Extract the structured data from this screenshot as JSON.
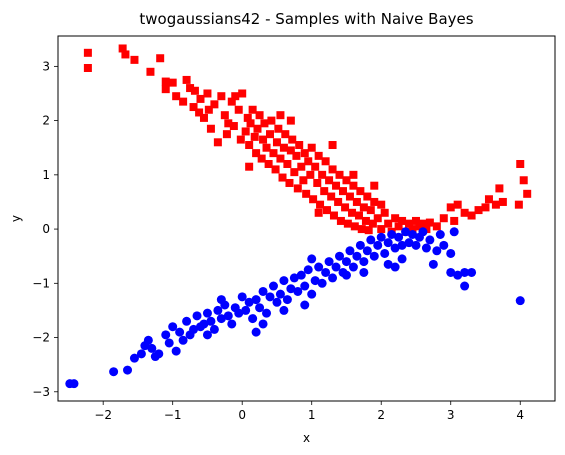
{
  "chart_data": {
    "type": "scatter",
    "title": "twogaussians42 - Samples with Naive Bayes",
    "xlabel": "x",
    "ylabel": "y",
    "xlim": [
      -2.65,
      4.5
    ],
    "ylim": [
      -3.17,
      3.56
    ],
    "xticks": [
      "−2",
      "−1",
      "0",
      "1",
      "2",
      "3",
      "4"
    ],
    "xtick_values": [
      -2,
      -1,
      0,
      1,
      2,
      3,
      4
    ],
    "yticks": [
      "−3",
      "−2",
      "−1",
      "0",
      "1",
      "2",
      "3"
    ],
    "ytick_values": [
      -3,
      -2,
      -1,
      0,
      1,
      2,
      3
    ],
    "grid": false,
    "series": [
      {
        "color": "#ff0000",
        "marker": "square",
        "points": [
          [
            -2.22,
            3.25
          ],
          [
            -2.22,
            2.97
          ],
          [
            -1.72,
            3.33
          ],
          [
            -1.68,
            3.22
          ],
          [
            -1.55,
            3.12
          ],
          [
            -1.32,
            2.9
          ],
          [
            -1.18,
            3.15
          ],
          [
            -1.1,
            2.72
          ],
          [
            -1.1,
            2.58
          ],
          [
            -1.0,
            2.7
          ],
          [
            -0.95,
            2.45
          ],
          [
            -0.85,
            2.35
          ],
          [
            -0.8,
            2.75
          ],
          [
            -0.75,
            2.6
          ],
          [
            -0.7,
            2.25
          ],
          [
            -0.68,
            2.55
          ],
          [
            -0.62,
            2.15
          ],
          [
            -0.6,
            2.4
          ],
          [
            -0.55,
            2.05
          ],
          [
            -0.5,
            2.5
          ],
          [
            -0.48,
            2.2
          ],
          [
            -0.45,
            1.85
          ],
          [
            -0.4,
            2.3
          ],
          [
            -0.35,
            1.6
          ],
          [
            -0.3,
            2.45
          ],
          [
            -0.25,
            2.1
          ],
          [
            -0.22,
            1.75
          ],
          [
            -0.2,
            1.95
          ],
          [
            -0.15,
            2.35
          ],
          [
            -0.12,
            1.9
          ],
          [
            -0.05,
            2.2
          ],
          [
            -0.02,
            1.65
          ],
          [
            0.0,
            2.5
          ],
          [
            0.05,
            1.8
          ],
          [
            0.08,
            2.05
          ],
          [
            0.1,
            1.55
          ],
          [
            0.12,
            1.95
          ],
          [
            0.15,
            2.2
          ],
          [
            0.18,
            1.7
          ],
          [
            0.2,
            1.4
          ],
          [
            0.22,
            1.85
          ],
          [
            0.25,
            2.1
          ],
          [
            0.28,
            1.3
          ],
          [
            0.3,
            1.65
          ],
          [
            0.32,
            1.95
          ],
          [
            0.35,
            1.5
          ],
          [
            0.38,
            1.2
          ],
          [
            0.4,
            1.75
          ],
          [
            0.42,
            2.0
          ],
          [
            0.45,
            1.4
          ],
          [
            0.48,
            1.1
          ],
          [
            0.5,
            1.6
          ],
          [
            0.52,
            1.85
          ],
          [
            0.55,
            1.3
          ],
          [
            0.58,
            0.95
          ],
          [
            0.6,
            1.5
          ],
          [
            0.62,
            1.75
          ],
          [
            0.65,
            1.2
          ],
          [
            0.68,
            0.85
          ],
          [
            0.7,
            1.45
          ],
          [
            0.72,
            1.65
          ],
          [
            0.75,
            1.05
          ],
          [
            0.78,
            1.35
          ],
          [
            0.8,
            0.75
          ],
          [
            0.82,
            1.55
          ],
          [
            0.85,
            1.15
          ],
          [
            0.88,
            0.9
          ],
          [
            0.9,
            1.4
          ],
          [
            0.92,
            0.65
          ],
          [
            0.95,
            1.25
          ],
          [
            0.98,
            1.0
          ],
          [
            1.0,
            1.5
          ],
          [
            1.02,
            0.55
          ],
          [
            1.05,
            1.15
          ],
          [
            1.08,
            0.85
          ],
          [
            1.1,
            1.35
          ],
          [
            1.12,
            0.45
          ],
          [
            1.15,
            1.0
          ],
          [
            1.18,
            0.7
          ],
          [
            1.2,
            1.25
          ],
          [
            1.22,
            0.35
          ],
          [
            1.25,
            0.9
          ],
          [
            1.28,
            0.6
          ],
          [
            1.3,
            1.1
          ],
          [
            1.32,
            0.25
          ],
          [
            1.35,
            0.8
          ],
          [
            1.38,
            0.5
          ],
          [
            1.4,
            1.0
          ],
          [
            1.42,
            0.15
          ],
          [
            1.45,
            0.7
          ],
          [
            1.48,
            0.4
          ],
          [
            1.5,
            0.9
          ],
          [
            1.52,
            0.1
          ],
          [
            1.55,
            0.6
          ],
          [
            1.58,
            0.3
          ],
          [
            1.6,
            0.8
          ],
          [
            1.62,
            0.05
          ],
          [
            1.65,
            0.5
          ],
          [
            1.68,
            0.25
          ],
          [
            1.7,
            0.7
          ],
          [
            1.72,
            0.0
          ],
          [
            1.75,
            0.4
          ],
          [
            1.78,
            0.15
          ],
          [
            1.8,
            0.6
          ],
          [
            1.82,
            -0.02
          ],
          [
            1.85,
            0.35
          ],
          [
            1.88,
            0.1
          ],
          [
            1.9,
            0.5
          ],
          [
            1.95,
            0.2
          ],
          [
            2.0,
            0.0
          ],
          [
            2.05,
            0.3
          ],
          [
            2.1,
            0.1
          ],
          [
            2.15,
            -0.05
          ],
          [
            2.2,
            0.2
          ],
          [
            2.25,
            0.05
          ],
          [
            2.3,
            0.15
          ],
          [
            2.35,
            -0.05
          ],
          [
            2.4,
            0.1
          ],
          [
            2.45,
            0.0
          ],
          [
            2.5,
            0.15
          ],
          [
            2.55,
            0.05
          ],
          [
            2.6,
            0.1
          ],
          [
            2.65,
            0.0
          ],
          [
            2.7,
            0.12
          ],
          [
            2.8,
            0.05
          ],
          [
            2.9,
            0.2
          ],
          [
            3.0,
            0.4
          ],
          [
            3.05,
            0.15
          ],
          [
            3.1,
            0.45
          ],
          [
            3.2,
            0.3
          ],
          [
            3.3,
            0.25
          ],
          [
            3.4,
            0.35
          ],
          [
            3.5,
            0.4
          ],
          [
            3.55,
            0.55
          ],
          [
            3.65,
            0.45
          ],
          [
            3.7,
            0.75
          ],
          [
            3.75,
            0.5
          ],
          [
            4.0,
            1.2
          ],
          [
            4.05,
            0.9
          ],
          [
            4.1,
            0.65
          ],
          [
            3.98,
            0.45
          ],
          [
            2.0,
            0.45
          ],
          [
            1.3,
            1.55
          ],
          [
            1.6,
            1.0
          ],
          [
            0.55,
            2.1
          ],
          [
            0.1,
            1.15
          ],
          [
            -0.1,
            2.45
          ],
          [
            1.1,
            0.3
          ],
          [
            0.7,
            2.0
          ],
          [
            1.9,
            0.8
          ]
        ]
      },
      {
        "color": "#0000ff",
        "marker": "circle",
        "points": [
          [
            -2.48,
            -2.85
          ],
          [
            -2.42,
            -2.85
          ],
          [
            -1.85,
            -2.63
          ],
          [
            -1.65,
            -2.6
          ],
          [
            -1.55,
            -2.38
          ],
          [
            -1.45,
            -2.3
          ],
          [
            -1.4,
            -2.15
          ],
          [
            -1.35,
            -2.05
          ],
          [
            -1.3,
            -2.2
          ],
          [
            -1.25,
            -2.35
          ],
          [
            -1.1,
            -1.95
          ],
          [
            -1.05,
            -2.1
          ],
          [
            -1.0,
            -1.8
          ],
          [
            -0.95,
            -2.25
          ],
          [
            -0.9,
            -1.9
          ],
          [
            -0.85,
            -2.05
          ],
          [
            -0.8,
            -1.7
          ],
          [
            -0.75,
            -1.95
          ],
          [
            -0.7,
            -1.85
          ],
          [
            -0.65,
            -1.6
          ],
          [
            -0.6,
            -1.8
          ],
          [
            -0.55,
            -1.75
          ],
          [
            -0.5,
            -1.55
          ],
          [
            -0.45,
            -1.7
          ],
          [
            -0.4,
            -1.85
          ],
          [
            -0.35,
            -1.5
          ],
          [
            -0.3,
            -1.65
          ],
          [
            -0.25,
            -1.4
          ],
          [
            -0.2,
            -1.6
          ],
          [
            -0.15,
            -1.75
          ],
          [
            -0.1,
            -1.45
          ],
          [
            -0.05,
            -1.55
          ],
          [
            0.0,
            -1.25
          ],
          [
            0.05,
            -1.5
          ],
          [
            0.1,
            -1.35
          ],
          [
            0.15,
            -1.65
          ],
          [
            0.2,
            -1.3
          ],
          [
            0.25,
            -1.45
          ],
          [
            0.3,
            -1.15
          ],
          [
            0.35,
            -1.55
          ],
          [
            0.4,
            -1.25
          ],
          [
            0.45,
            -1.05
          ],
          [
            0.5,
            -1.35
          ],
          [
            0.55,
            -1.2
          ],
          [
            0.6,
            -0.95
          ],
          [
            0.65,
            -1.3
          ],
          [
            0.7,
            -1.1
          ],
          [
            0.75,
            -0.9
          ],
          [
            0.8,
            -1.15
          ],
          [
            0.85,
            -0.85
          ],
          [
            0.9,
            -1.05
          ],
          [
            0.95,
            -0.75
          ],
          [
            1.0,
            -1.2
          ],
          [
            1.05,
            -0.95
          ],
          [
            1.1,
            -0.7
          ],
          [
            1.15,
            -1.0
          ],
          [
            1.2,
            -0.8
          ],
          [
            1.25,
            -0.6
          ],
          [
            1.3,
            -0.9
          ],
          [
            1.35,
            -0.7
          ],
          [
            1.4,
            -0.5
          ],
          [
            1.45,
            -0.8
          ],
          [
            1.5,
            -0.6
          ],
          [
            1.55,
            -0.4
          ],
          [
            1.6,
            -0.7
          ],
          [
            1.65,
            -0.5
          ],
          [
            1.7,
            -0.3
          ],
          [
            1.75,
            -0.6
          ],
          [
            1.8,
            -0.4
          ],
          [
            1.85,
            -0.2
          ],
          [
            1.9,
            -0.5
          ],
          [
            1.95,
            -0.3
          ],
          [
            2.0,
            -0.15
          ],
          [
            2.05,
            -0.45
          ],
          [
            2.1,
            -0.25
          ],
          [
            2.15,
            -0.1
          ],
          [
            2.2,
            -0.35
          ],
          [
            2.25,
            -0.15
          ],
          [
            2.3,
            -0.3
          ],
          [
            2.35,
            -0.05
          ],
          [
            2.4,
            -0.25
          ],
          [
            2.45,
            -0.1
          ],
          [
            2.5,
            -0.3
          ],
          [
            2.55,
            -0.15
          ],
          [
            2.6,
            -0.05
          ],
          [
            2.65,
            -0.35
          ],
          [
            2.7,
            -0.2
          ],
          [
            2.8,
            -0.4
          ],
          [
            2.85,
            -0.1
          ],
          [
            2.9,
            -0.3
          ],
          [
            3.0,
            -0.45
          ],
          [
            3.05,
            -0.05
          ],
          [
            2.75,
            -0.65
          ],
          [
            2.3,
            -0.55
          ],
          [
            2.1,
            -0.65
          ],
          [
            3.0,
            -0.8
          ],
          [
            3.1,
            -0.85
          ],
          [
            3.2,
            -0.8
          ],
          [
            3.3,
            -0.8
          ],
          [
            3.2,
            -1.05
          ],
          [
            4.0,
            -1.32
          ],
          [
            1.5,
            -0.85
          ],
          [
            0.9,
            -1.4
          ],
          [
            0.3,
            -1.75
          ],
          [
            -0.5,
            -1.95
          ],
          [
            -1.2,
            -2.3
          ],
          [
            1.75,
            -0.8
          ],
          [
            0.2,
            -1.9
          ],
          [
            1.0,
            -0.55
          ],
          [
            -0.3,
            -1.3
          ],
          [
            2.2,
            -0.7
          ],
          [
            0.6,
            -1.5
          ]
        ]
      }
    ]
  }
}
